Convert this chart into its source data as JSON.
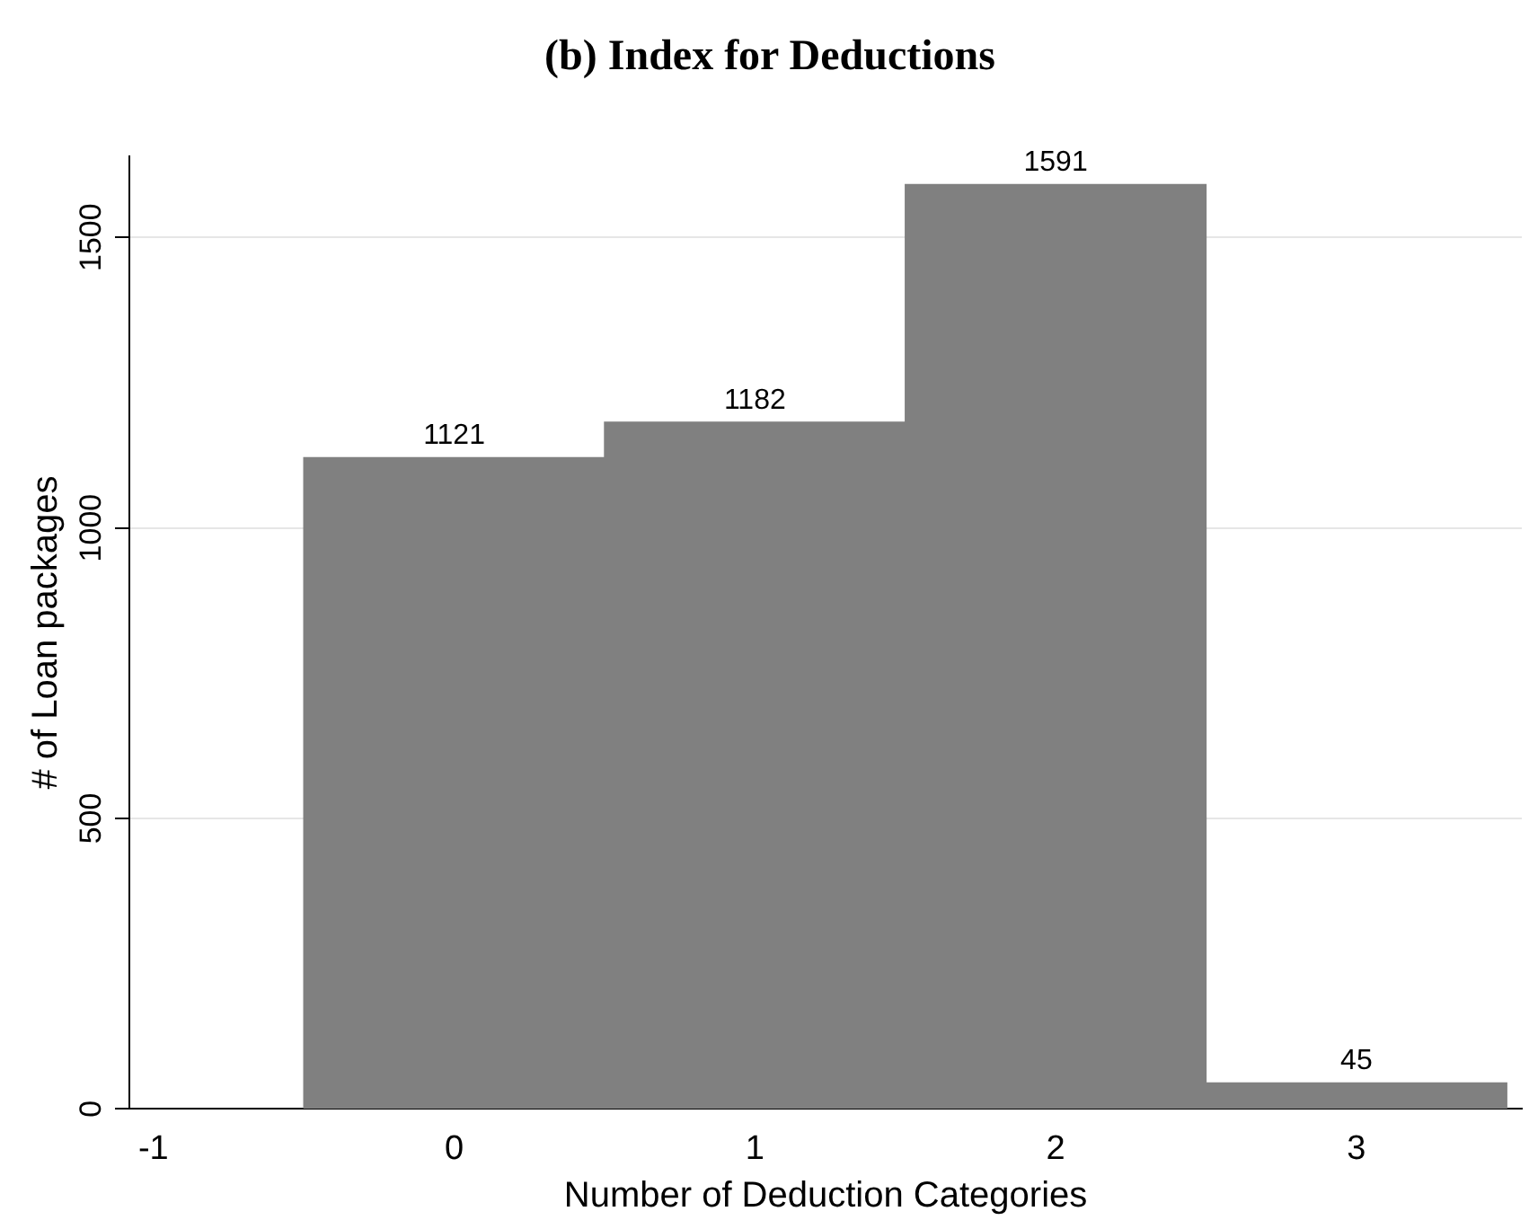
{
  "chart_data": {
    "type": "histogram",
    "title": "(b) Index for Deductions",
    "xlabel": "Number of Deduction Categories",
    "ylabel": "# of Loan packages",
    "bins": [
      -0.5,
      0.5,
      1.5,
      2.5,
      3.5
    ],
    "values": [
      1121,
      1182,
      1591,
      45
    ],
    "color": "#808080",
    "xlim": [
      -1.08,
      3.55
    ],
    "xticks": [
      -1,
      0,
      1,
      2,
      3
    ],
    "ylim": [
      0,
      1640
    ],
    "yticks": [
      0,
      500,
      1000,
      1500
    ],
    "grid": "y",
    "legend": false,
    "data_labels": true
  }
}
